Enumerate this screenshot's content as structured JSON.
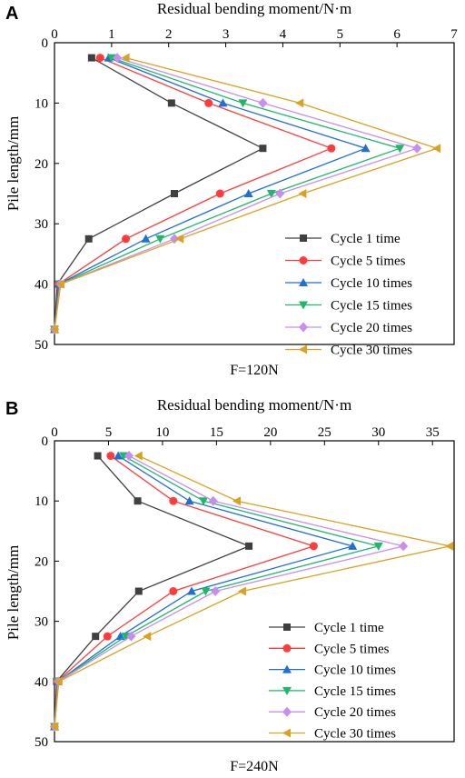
{
  "chart_data": [
    {
      "panel": "A",
      "type": "line",
      "orientation": "depth-profile",
      "xlabel": "Residual bending moment/N·m",
      "ylabel": "Pile length/mm",
      "caption": "F=120N",
      "xlim": [
        0,
        7
      ],
      "ylim": [
        0,
        50
      ],
      "y_inverted": true,
      "xticks": [
        0,
        1,
        2,
        3,
        4,
        5,
        6,
        7
      ],
      "yticks": [
        0,
        10,
        20,
        30,
        40,
        50
      ],
      "x_axis_position": "top",
      "legend_position": "bottom-right",
      "y": [
        2.5,
        10,
        17.5,
        25,
        32.5,
        40,
        47.5
      ],
      "series": [
        {
          "name": "Cycle 1 time",
          "color": "#404040",
          "marker": "square",
          "x": [
            0.65,
            2.05,
            3.65,
            2.1,
            0.6,
            0.05,
            0.0
          ]
        },
        {
          "name": "Cycle 5 times",
          "color": "#ff3b3b",
          "marker": "circle",
          "x": [
            0.8,
            2.7,
            4.85,
            2.9,
            1.25,
            0.07,
            0.0
          ]
        },
        {
          "name": "Cycle 10 times",
          "color": "#1f6fd6",
          "marker": "triangle-up",
          "x": [
            0.95,
            2.95,
            5.45,
            3.4,
            1.6,
            0.08,
            0.0
          ]
        },
        {
          "name": "Cycle 15 times",
          "color": "#1fb86a",
          "marker": "triangle-down",
          "x": [
            1.0,
            3.3,
            6.05,
            3.8,
            1.85,
            0.09,
            0.0
          ]
        },
        {
          "name": "Cycle 20 times",
          "color": "#c78ef0",
          "marker": "diamond",
          "x": [
            1.1,
            3.65,
            6.35,
            3.95,
            2.1,
            0.1,
            0.0
          ]
        },
        {
          "name": "Cycle 30 times",
          "color": "#d9a21f",
          "marker": "triangle-left",
          "x": [
            1.25,
            4.3,
            6.7,
            4.35,
            2.2,
            0.11,
            0.0
          ]
        }
      ]
    },
    {
      "panel": "B",
      "type": "line",
      "orientation": "depth-profile",
      "xlabel": "Residual bending moment/N·m",
      "ylabel": "Pile length/mm",
      "caption": "F=240N",
      "xlim": [
        0,
        37
      ],
      "ylim": [
        0,
        50
      ],
      "y_inverted": true,
      "xticks": [
        0,
        5,
        10,
        15,
        20,
        25,
        30,
        35
      ],
      "yticks": [
        0,
        10,
        20,
        30,
        40,
        50
      ],
      "x_axis_position": "top",
      "legend_position": "bottom-right",
      "y": [
        2.5,
        10,
        17.5,
        25,
        32.5,
        40,
        47.5
      ],
      "series": [
        {
          "name": "Cycle 1 time",
          "color": "#404040",
          "marker": "square",
          "x": [
            4.0,
            7.7,
            18.0,
            7.8,
            3.8,
            0.2,
            0.0
          ]
        },
        {
          "name": "Cycle 5 times",
          "color": "#ff3b3b",
          "marker": "circle",
          "x": [
            5.2,
            11.0,
            24.0,
            11.0,
            4.9,
            0.25,
            0.0
          ]
        },
        {
          "name": "Cycle 10 times",
          "color": "#1f6fd6",
          "marker": "triangle-up",
          "x": [
            5.9,
            12.5,
            27.6,
            12.7,
            6.1,
            0.3,
            0.0
          ]
        },
        {
          "name": "Cycle 15 times",
          "color": "#1fb86a",
          "marker": "triangle-down",
          "x": [
            6.4,
            13.8,
            30.0,
            14.0,
            6.6,
            0.32,
            0.0
          ]
        },
        {
          "name": "Cycle 20 times",
          "color": "#c78ef0",
          "marker": "diamond",
          "x": [
            6.9,
            14.7,
            32.3,
            14.9,
            7.1,
            0.35,
            0.0
          ]
        },
        {
          "name": "Cycle 30 times",
          "color": "#d9a21f",
          "marker": "triangle-left",
          "x": [
            7.8,
            16.9,
            36.6,
            17.4,
            8.6,
            0.4,
            0.0
          ]
        }
      ]
    }
  ]
}
